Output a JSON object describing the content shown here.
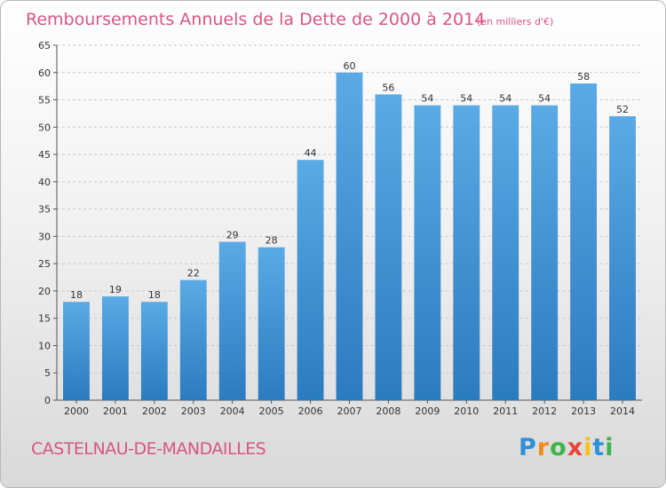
{
  "chart_data": {
    "type": "bar",
    "title": "Remboursements Annuels de la Dette de 2000 à 2014",
    "subtitle": "(en milliers d'€)",
    "categories": [
      "2000",
      "2001",
      "2002",
      "2003",
      "2004",
      "2005",
      "2006",
      "2007",
      "2008",
      "2009",
      "2010",
      "2011",
      "2012",
      "2013",
      "2014"
    ],
    "values": [
      18,
      19,
      18,
      22,
      29,
      28,
      44,
      60,
      56,
      54,
      54,
      54,
      54,
      58,
      52
    ],
    "ylim": [
      0,
      65
    ],
    "yticks": [
      0,
      5,
      10,
      15,
      20,
      25,
      30,
      35,
      40,
      45,
      50,
      55,
      60,
      65
    ],
    "xlabel": "",
    "ylabel": "",
    "grid": true,
    "bar_color_top": "#5aaae6",
    "bar_color_bottom": "#2b7bbf"
  },
  "footer": {
    "commune": "CASTELNAU-DE-MANDAILLES",
    "logo_letters": [
      "P",
      "r",
      "o",
      "x",
      "i",
      "t",
      "i"
    ],
    "logo_colors": [
      "#2f8fd8",
      "#f08a1c",
      "#3bb54a",
      "#e8443a",
      "#f4c20d",
      "#2f8fd8",
      "#3bb54a"
    ]
  }
}
